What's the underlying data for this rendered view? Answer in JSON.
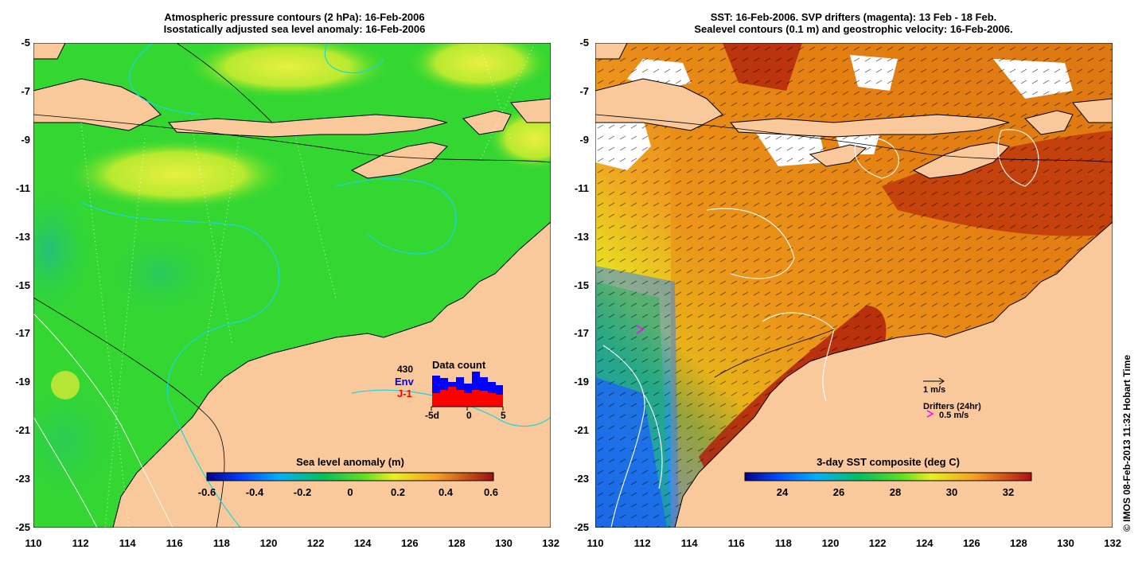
{
  "left_panel": {
    "title_line1": "Atmospheric pressure contours (2 hPa): 16-Feb-2006",
    "title_line2": "Isostatically adjusted sea level anomaly: 16-Feb-2006",
    "colorbar_title": "Sea level anomaly (m)",
    "colorbar_ticks": [
      "-0.6",
      "-0.4",
      "-0.2",
      "0",
      "0.2",
      "0.4",
      "0.6"
    ],
    "inset": {
      "count": "430",
      "env_label": "Env",
      "j1_label": "J-1",
      "title": "Data count",
      "x_ticks": [
        "-5d",
        "0",
        "5"
      ],
      "env_color": "#0000ff",
      "j1_color": "#ff0000"
    }
  },
  "right_panel": {
    "title_line1": "SST: 16-Feb-2006. SVP drifters (magenta): 13 Feb - 18 Feb.",
    "title_line2": "Sealevel contours (0.1 m) and geostrophic velocity: 16-Feb-2006.",
    "colorbar_title": "3-day SST composite (deg C)",
    "colorbar_ticks": [
      "24",
      "26",
      "28",
      "30",
      "32"
    ],
    "velocity_scale": "1 m/s",
    "drifters_label": "Drifters (24hr)",
    "drifter_speed": "0.5 m/s",
    "drifter_color": "#ff00ff"
  },
  "y_ticks": [
    "-5",
    "-7",
    "-9",
    "-11",
    "-13",
    "-15",
    "-17",
    "-19",
    "-21",
    "-23",
    "-25"
  ],
  "x_ticks": [
    "110",
    "112",
    "114",
    "116",
    "118",
    "120",
    "122",
    "124",
    "126",
    "128",
    "130",
    "132"
  ],
  "copyright": "© IMOS 08-Feb-2013 11:32 Hobart Time",
  "colors": {
    "land": "#f9c89b",
    "ocean_green": "#2fd82f",
    "sst_warm": "#e07a10"
  }
}
